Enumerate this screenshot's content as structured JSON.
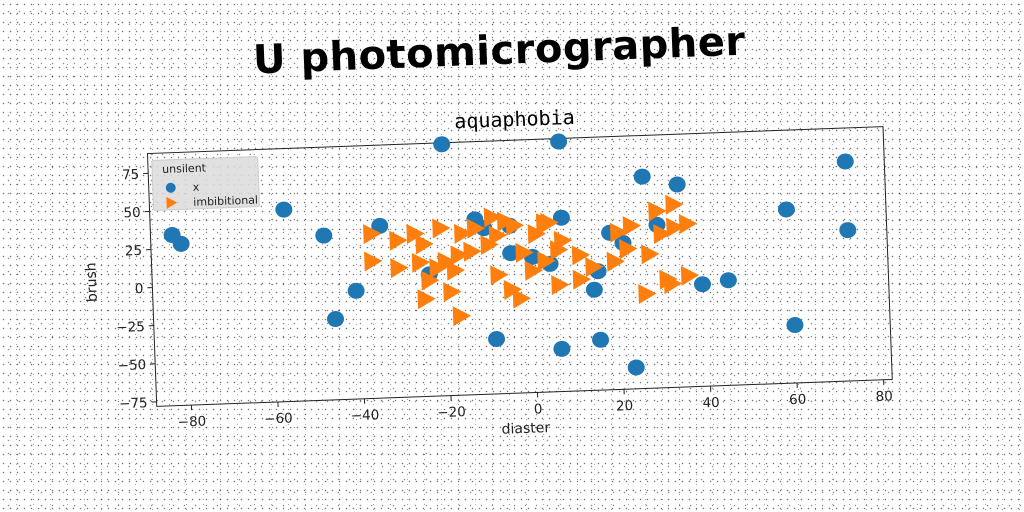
{
  "suptitle": "U photomicrographer",
  "chart_data": {
    "type": "scatter",
    "title": "aquaphobia",
    "xlabel": "diaster",
    "ylabel": "brush",
    "xlim": [
      -88,
      82
    ],
    "ylim": [
      -78,
      88
    ],
    "xticks": [
      -80,
      -60,
      -40,
      -20,
      0,
      20,
      40,
      60,
      80
    ],
    "yticks": [
      -75,
      -50,
      -25,
      0,
      25,
      50,
      75
    ],
    "grid": false,
    "legend": {
      "title": "unsilent",
      "placement": "top-left"
    },
    "series": [
      {
        "name": "x",
        "marker": "circle",
        "color": "#1f77b4",
        "points": [
          [
            -20,
            87
          ],
          [
            7,
            86
          ],
          [
            -83,
            34
          ],
          [
            -81,
            28
          ],
          [
            -57,
            48
          ],
          [
            -48,
            30
          ],
          [
            -35,
            35
          ],
          [
            -41,
            -7
          ],
          [
            -46,
            -25
          ],
          [
            -24,
            2
          ],
          [
            -13,
            37
          ],
          [
            -11,
            31
          ],
          [
            -5,
            32
          ],
          [
            -5,
            14
          ],
          [
            0,
            11
          ],
          [
            4,
            6
          ],
          [
            7,
            36
          ],
          [
            -9,
            -42
          ],
          [
            6,
            -50
          ],
          [
            15,
            -45
          ],
          [
            15,
            0
          ],
          [
            14,
            -12
          ],
          [
            18,
            25
          ],
          [
            21,
            18
          ],
          [
            26,
            61
          ],
          [
            29,
            29
          ],
          [
            34,
            55
          ],
          [
            39,
            -11
          ],
          [
            45,
            -9
          ],
          [
            59,
            36
          ],
          [
            60,
            -40
          ],
          [
            73,
            66
          ],
          [
            73,
            21
          ],
          [
            23,
            -64
          ]
        ]
      },
      {
        "name": "imbibitional",
        "marker": "triangle-right",
        "color": "#ff7f0e",
        "points": [
          [
            -37,
            30
          ],
          [
            -31,
            25
          ],
          [
            -27,
            29
          ],
          [
            -25,
            22
          ],
          [
            -21,
            32
          ],
          [
            -16,
            28
          ],
          [
            -13,
            31
          ],
          [
            -9,
            38
          ],
          [
            -6,
            35
          ],
          [
            -4,
            32
          ],
          [
            -8,
            26
          ],
          [
            -10,
            20
          ],
          [
            -14,
            16
          ],
          [
            -17,
            14
          ],
          [
            -20,
            10
          ],
          [
            -22,
            6
          ],
          [
            -18,
            4
          ],
          [
            -26,
            10
          ],
          [
            -37,
            12
          ],
          [
            -31,
            7
          ],
          [
            -24,
            -2
          ],
          [
            -19,
            -10
          ],
          [
            -25,
            -14
          ],
          [
            -17,
            -26
          ],
          [
            -8,
            0
          ],
          [
            -5,
            -10
          ],
          [
            -3,
            -16
          ],
          [
            0,
            2
          ],
          [
            3,
            8
          ],
          [
            6,
            15
          ],
          [
            1,
            26
          ],
          [
            4,
            33
          ],
          [
            7,
            21
          ],
          [
            11,
            11
          ],
          [
            14,
            3
          ],
          [
            6,
            -8
          ],
          [
            11,
            -5
          ],
          [
            19,
            6
          ],
          [
            22,
            14
          ],
          [
            27,
            10
          ],
          [
            30,
            23
          ],
          [
            33,
            27
          ],
          [
            29,
            38
          ],
          [
            33,
            42
          ],
          [
            36,
            29
          ],
          [
            23,
            29
          ],
          [
            20,
            25
          ],
          [
            -2,
            14
          ],
          [
            3,
            33
          ],
          [
            31,
            -7
          ],
          [
            36,
            -5
          ],
          [
            32,
            -10
          ],
          [
            26,
            -16
          ]
        ]
      }
    ]
  }
}
